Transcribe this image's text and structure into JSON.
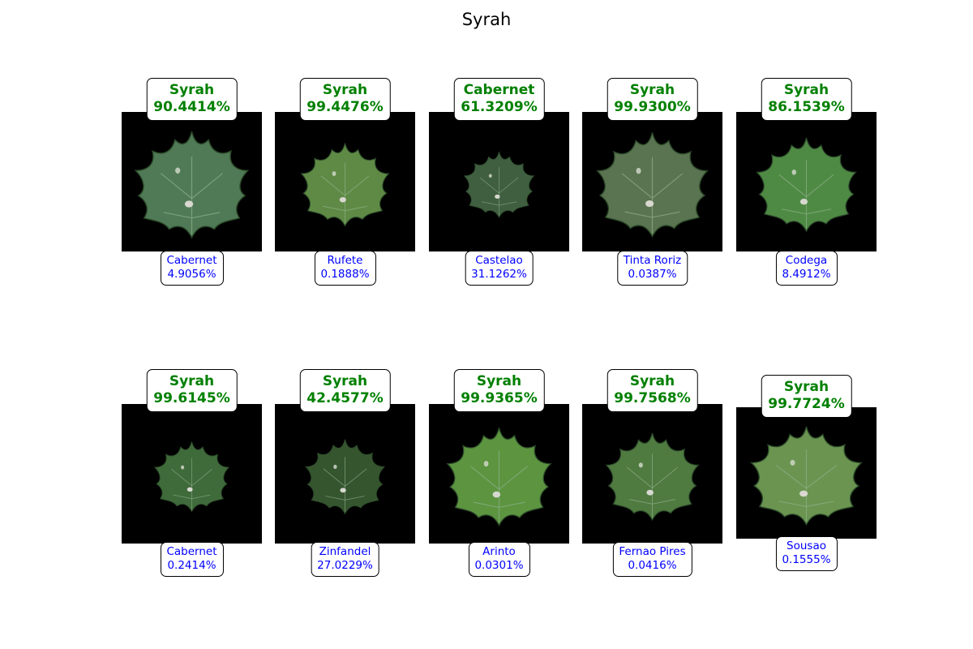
{
  "figure": {
    "title": "Syrah"
  },
  "panels": [
    {
      "top_class": "Syrah",
      "top_pct": "90.4414%",
      "bottom_class": "Cabernet",
      "bottom_pct": "4.9056%",
      "leaf_color": "#4f7a55"
    },
    {
      "top_class": "Syrah",
      "top_pct": "99.4476%",
      "bottom_class": "Rufete",
      "bottom_pct": "0.1888%",
      "leaf_color": "#5f8a45"
    },
    {
      "top_class": "Cabernet",
      "top_pct": "61.3209%",
      "bottom_class": "Castelao",
      "bottom_pct": "31.1262%",
      "leaf_color": "#3f5f40"
    },
    {
      "top_class": "Syrah",
      "top_pct": "99.9300%",
      "bottom_class": "Tinta Roriz",
      "bottom_pct": "0.0387%",
      "leaf_color": "#5a7350"
    },
    {
      "top_class": "Syrah",
      "top_pct": "86.1539%",
      "bottom_class": "Codega",
      "bottom_pct": "8.4912%",
      "leaf_color": "#4f8a45"
    },
    {
      "top_class": "Syrah",
      "top_pct": "99.6145%",
      "bottom_class": "Cabernet",
      "bottom_pct": "0.2414%",
      "leaf_color": "#3f6a3a"
    },
    {
      "top_class": "Syrah",
      "top_pct": "42.4577%",
      "bottom_class": "Zinfandel",
      "bottom_pct": "27.0229%",
      "leaf_color": "#35552f"
    },
    {
      "top_class": "Syrah",
      "top_pct": "99.9365%",
      "bottom_class": "Arinto",
      "bottom_pct": "0.0301%",
      "leaf_color": "#5c9440"
    },
    {
      "top_class": "Syrah",
      "top_pct": "99.7568%",
      "bottom_class": "Fernao Pires",
      "bottom_pct": "0.0416%",
      "leaf_color": "#4f7a40"
    },
    {
      "top_class": "Syrah",
      "top_pct": "99.7724%",
      "bottom_class": "Sousao",
      "bottom_pct": "0.1555%",
      "leaf_color": "#6a9450"
    }
  ]
}
